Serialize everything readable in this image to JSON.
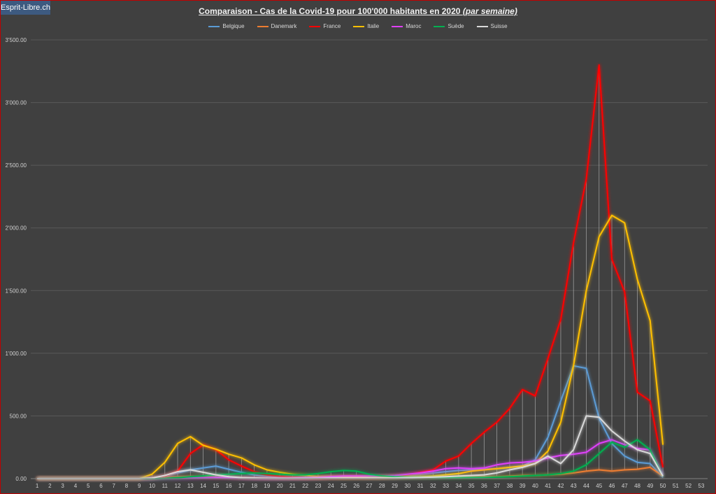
{
  "header": {
    "site_badge": "Esprit-Libre.ch"
  },
  "chart_data": {
    "type": "line",
    "title": "Comparaison - Cas de la Covid-19 pour 100'000  habitants en 2020",
    "subtitle": "(par semaine)",
    "xlabel": "",
    "ylabel": "",
    "x": [
      1,
      2,
      3,
      4,
      5,
      6,
      7,
      8,
      9,
      10,
      11,
      12,
      13,
      14,
      15,
      16,
      17,
      18,
      19,
      20,
      21,
      22,
      23,
      24,
      25,
      26,
      27,
      28,
      29,
      30,
      31,
      32,
      33,
      34,
      35,
      36,
      37,
      38,
      39,
      40,
      41,
      42,
      43,
      44,
      45,
      46,
      47,
      48,
      49,
      50,
      51,
      52,
      53
    ],
    "ylim": [
      0,
      3500
    ],
    "yticks": [
      0,
      500,
      1000,
      1500,
      2000,
      2500,
      3000,
      3500
    ],
    "ytick_labels": [
      "0.00",
      "500.00",
      "1'000.00",
      "1'500.00",
      "2'000.00",
      "2'500.00",
      "3'000.00",
      "3'500.00"
    ],
    "grid": true,
    "legend_position": "top",
    "series": [
      {
        "name": "Belgique",
        "color": "#5b9bd5",
        "values": [
          0,
          0,
          0,
          0,
          0,
          0,
          0,
          0,
          0,
          2,
          15,
          45,
          70,
          85,
          100,
          75,
          50,
          30,
          18,
          12,
          8,
          6,
          10,
          15,
          15,
          15,
          12,
          12,
          15,
          25,
          35,
          45,
          55,
          65,
          70,
          75,
          80,
          90,
          100,
          150,
          330,
          620,
          900,
          880,
          480,
          280,
          180,
          130,
          120,
          10,
          null,
          null,
          null
        ]
      },
      {
        "name": "Danemark",
        "color": "#ed7d31",
        "values": [
          0,
          0,
          0,
          0,
          0,
          0,
          0,
          0,
          0,
          2,
          10,
          15,
          18,
          15,
          12,
          10,
          8,
          5,
          3,
          2,
          2,
          2,
          3,
          5,
          5,
          8,
          8,
          10,
          12,
          15,
          18,
          15,
          15,
          15,
          15,
          15,
          15,
          20,
          25,
          25,
          30,
          35,
          45,
          60,
          70,
          60,
          70,
          75,
          90,
          20,
          null,
          null,
          null
        ]
      },
      {
        "name": "France",
        "color": "#ff0000",
        "values": [
          0,
          0,
          0,
          0,
          0,
          0,
          0,
          0,
          0,
          5,
          20,
          60,
          200,
          270,
          230,
          150,
          100,
          55,
          30,
          18,
          12,
          8,
          10,
          12,
          15,
          15,
          15,
          15,
          20,
          30,
          50,
          70,
          140,
          180,
          280,
          370,
          450,
          560,
          710,
          660,
          960,
          1270,
          1880,
          2390,
          3300,
          1750,
          1490,
          690,
          620,
          90,
          null,
          null,
          null
        ]
      },
      {
        "name": "Italie",
        "color": "#ffc000",
        "values": [
          0,
          0,
          0,
          0,
          0,
          0,
          0,
          0,
          0,
          35,
          130,
          280,
          335,
          265,
          235,
          195,
          165,
          110,
          70,
          50,
          35,
          25,
          15,
          15,
          12,
          12,
          12,
          12,
          15,
          15,
          15,
          20,
          30,
          40,
          60,
          70,
          80,
          90,
          100,
          120,
          220,
          450,
          900,
          1500,
          1930,
          2100,
          2040,
          1590,
          1260,
          270,
          null,
          null,
          null
        ]
      },
      {
        "name": "Maroc",
        "color": "#e040fb",
        "values": [
          0,
          0,
          0,
          0,
          0,
          0,
          0,
          0,
          0,
          0,
          1,
          2,
          5,
          8,
          10,
          8,
          5,
          3,
          2,
          3,
          5,
          8,
          10,
          15,
          20,
          20,
          20,
          20,
          25,
          35,
          45,
          60,
          80,
          85,
          80,
          85,
          110,
          125,
          130,
          140,
          165,
          185,
          195,
          210,
          280,
          310,
          270,
          240,
          230,
          30,
          null,
          null,
          null
        ]
      },
      {
        "name": "Suède",
        "color": "#00b050",
        "values": [
          0,
          0,
          0,
          0,
          0,
          0,
          0,
          0,
          0,
          0,
          2,
          8,
          15,
          22,
          30,
          35,
          40,
          45,
          40,
          35,
          30,
          30,
          40,
          55,
          65,
          60,
          35,
          22,
          15,
          12,
          12,
          10,
          8,
          8,
          10,
          10,
          12,
          15,
          20,
          25,
          30,
          40,
          60,
          110,
          200,
          290,
          250,
          310,
          230,
          20,
          null,
          null,
          null
        ]
      },
      {
        "name": "Suisse",
        "color": "#d9d9d9",
        "values": [
          0,
          0,
          0,
          0,
          0,
          0,
          0,
          0,
          0,
          5,
          25,
          55,
          70,
          50,
          30,
          15,
          8,
          5,
          3,
          2,
          2,
          2,
          3,
          5,
          5,
          5,
          5,
          5,
          5,
          8,
          10,
          12,
          15,
          20,
          25,
          30,
          45,
          70,
          90,
          120,
          180,
          120,
          230,
          500,
          490,
          380,
          300,
          230,
          200,
          20,
          null,
          null,
          null
        ]
      }
    ]
  }
}
